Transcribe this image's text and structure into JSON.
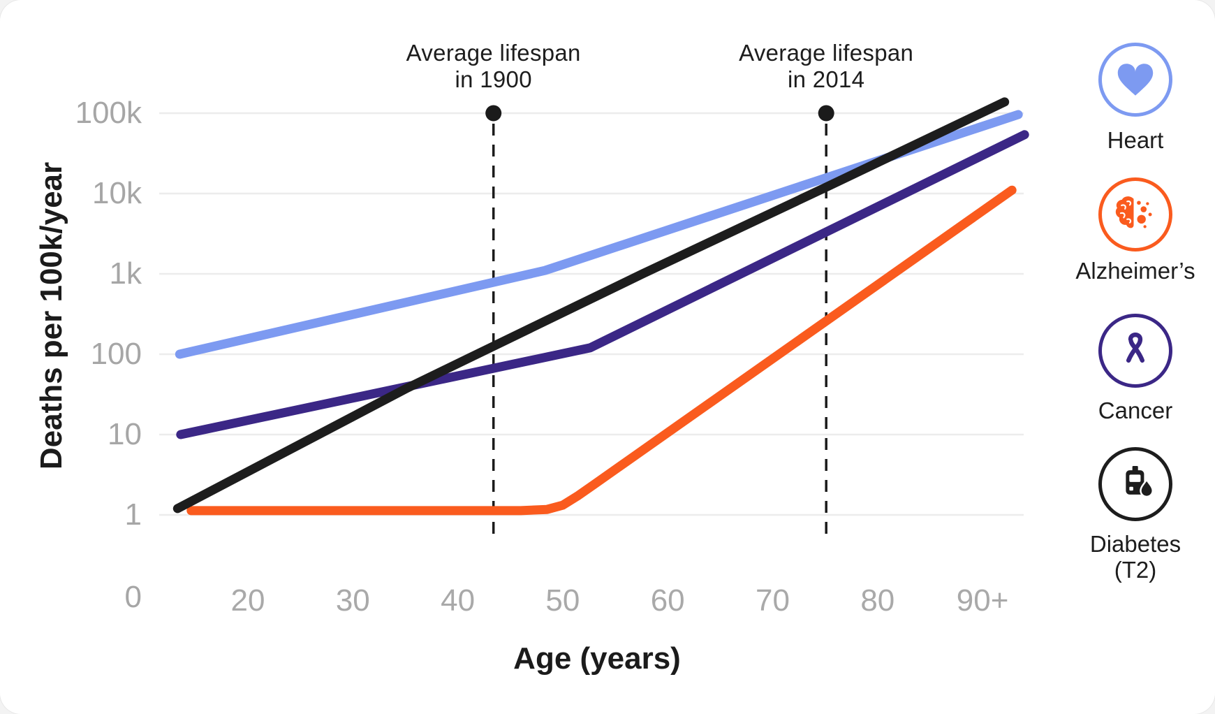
{
  "chart_data": {
    "type": "line",
    "xlabel": "Age (years)",
    "ylabel": "Deaths per 100k/year",
    "y_scale": "log",
    "ylim": [
      1,
      100000
    ],
    "grid": "horizontal",
    "y_ticks": [
      {
        "value": 100000,
        "label": "100k"
      },
      {
        "value": 10000,
        "label": "10k"
      },
      {
        "value": 1000,
        "label": "1k"
      },
      {
        "value": 100,
        "label": "100"
      },
      {
        "value": 10,
        "label": "10"
      },
      {
        "value": 1,
        "label": "1"
      }
    ],
    "origin_label": "0",
    "x_ticks": [
      {
        "value": 20,
        "label": "20"
      },
      {
        "value": 30,
        "label": "30"
      },
      {
        "value": 40,
        "label": "40"
      },
      {
        "value": 50,
        "label": "50"
      },
      {
        "value": 60,
        "label": "60"
      },
      {
        "value": 70,
        "label": "70"
      },
      {
        "value": 80,
        "label": "80"
      },
      {
        "value": 90,
        "label": "90+"
      }
    ],
    "series": [
      {
        "name": "Heart",
        "color": "#7d9af1",
        "points": [
          [
            13.5,
            100
          ],
          [
            48.3,
            1100
          ],
          [
            93.4,
            96000
          ]
        ]
      },
      {
        "name": "Cancer",
        "color": "#3b2786",
        "points": [
          [
            13.6,
            10
          ],
          [
            52.6,
            120
          ],
          [
            94,
            54000
          ]
        ]
      },
      {
        "name": "Alzheimer’s",
        "color": "#fa5b1e",
        "points": [
          [
            14.6,
            1.13
          ],
          [
            46,
            1.13
          ],
          [
            48.5,
            1.17
          ],
          [
            50,
            1.32
          ],
          [
            51.5,
            1.75
          ],
          [
            53,
            2.4
          ],
          [
            92.8,
            11000
          ]
        ]
      },
      {
        "name": "Diabetes (T2)",
        "color": "#1d1d1d",
        "points": [
          [
            13.3,
            1.2
          ],
          [
            35.2,
            38
          ],
          [
            57.6,
            1000
          ],
          [
            75.1,
            12000
          ],
          [
            92.1,
            138000
          ]
        ]
      }
    ],
    "annotations": [
      {
        "line1": "Average lifespan",
        "line2": "in 1900",
        "age": 43.4
      },
      {
        "line1": "Average lifespan",
        "line2": "in 2014",
        "age": 75.1
      }
    ]
  },
  "legend": {
    "items": [
      {
        "label": "Heart",
        "icon": "heart-icon",
        "color": "#7d9af1"
      },
      {
        "label": "Alzheimer’s",
        "icon": "brain-icon",
        "color": "#fa5b1e"
      },
      {
        "label": "Cancer",
        "icon": "ribbon-icon",
        "color": "#3b2786"
      },
      {
        "label": "Diabetes (T2)",
        "label_line1": "Diabetes",
        "label_line2": "(T2)",
        "icon": "glucometer-icon",
        "color": "#1d1d1d"
      }
    ]
  },
  "colors": {
    "grid": "#ececec",
    "tick_text": "#a6a6a6",
    "text": "#1d1d1d",
    "marker": "#1b1b1b",
    "background": "#ffffff"
  }
}
